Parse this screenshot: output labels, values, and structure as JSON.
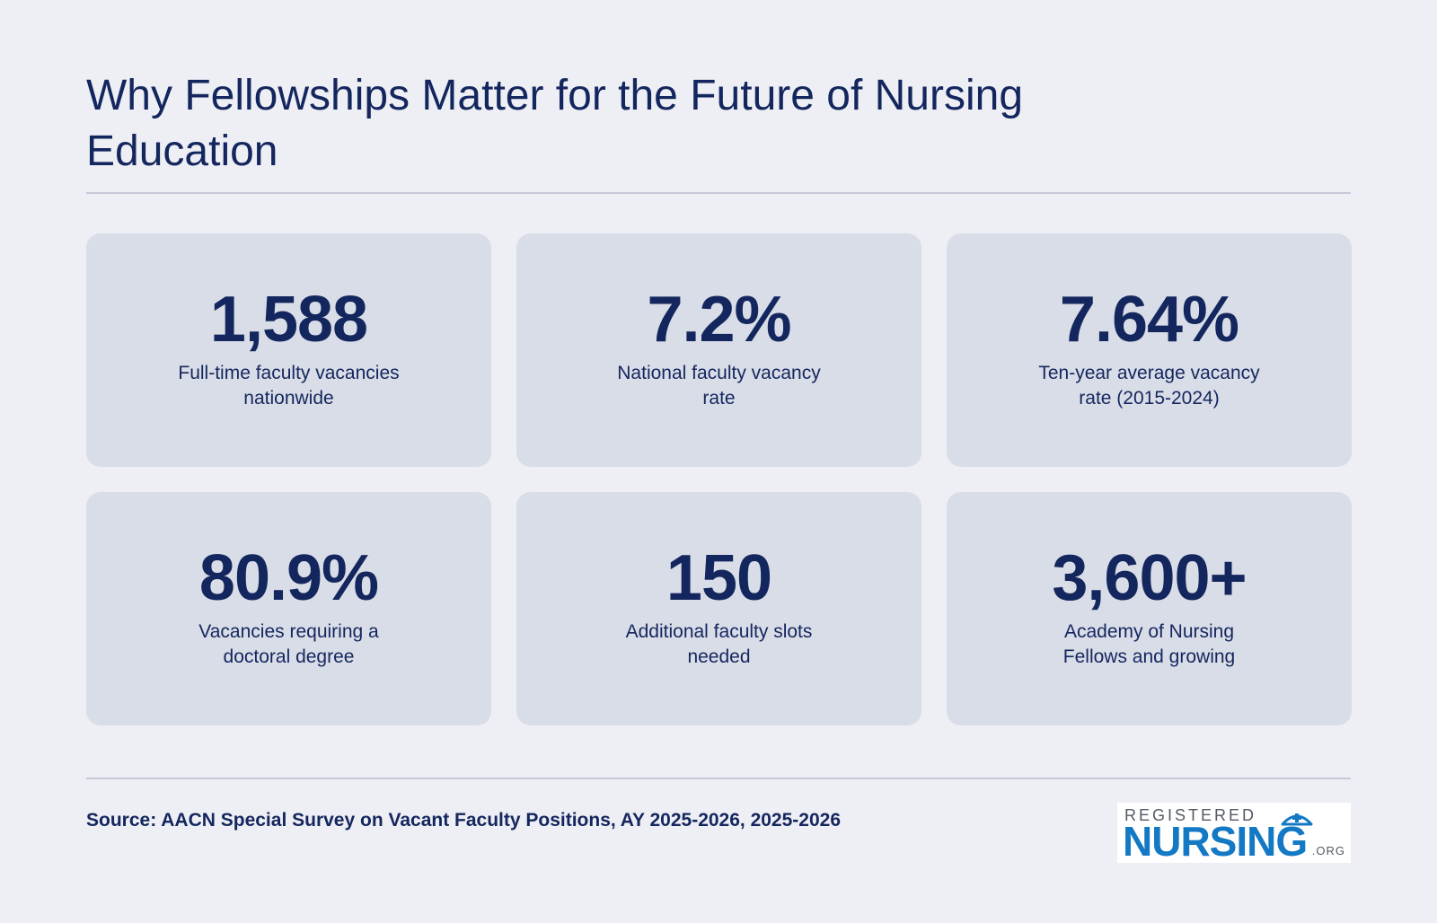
{
  "header": {
    "title": "Why Fellowships Matter for the Future of Nursing Education"
  },
  "stats": [
    {
      "value": "1,588",
      "label": "Full-time faculty vacancies nationwide"
    },
    {
      "value": "7.2%",
      "label": "National faculty vacancy rate"
    },
    {
      "value": "7.64%",
      "label": "Ten-year average vacancy rate (2015-2024)"
    },
    {
      "value": "80.9%",
      "label": "Vacancies requiring a doctoral degree"
    },
    {
      "value": "150",
      "label": "Additional faculty slots needed"
    },
    {
      "value": "3,600+",
      "label": "Academy of Nursing Fellows and growing"
    }
  ],
  "footer": {
    "source": "Source: AACN Special Survey on Vacant Faculty Positions, AY 2025-2026, 2025-2026"
  },
  "logo": {
    "top": "REGISTERED",
    "main": "NURSING",
    "suffix": ".ORG",
    "icon": "nurse-cap-icon",
    "color": "#1479c4"
  },
  "colors": {
    "background": "#eeeff4",
    "card": "#d9dde7",
    "text": "#14265e"
  }
}
